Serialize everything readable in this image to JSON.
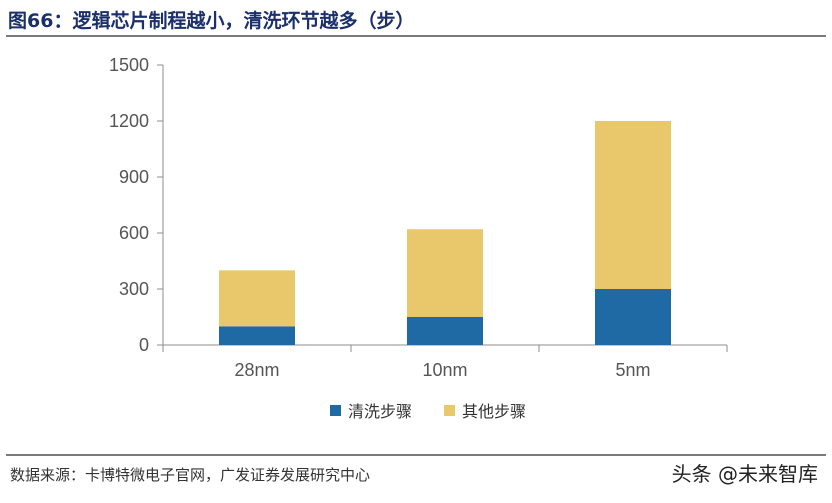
{
  "title": "图66：逻辑芯片制程越小，清洗环节越多（步）",
  "source": "数据来源：卡博特微电子官网，广发证券发展研究中心",
  "watermark": "头条 @未来智库",
  "chart_data": {
    "type": "bar",
    "stacked": true,
    "categories": [
      "28nm",
      "10nm",
      "5nm"
    ],
    "series": [
      {
        "name": "清洗步骤",
        "values": [
          100,
          150,
          300
        ],
        "color": "#1f6aa5"
      },
      {
        "name": "其他步骤",
        "values": [
          300,
          470,
          900
        ],
        "color": "#e8c86a"
      }
    ],
    "ylim": [
      0,
      1500
    ],
    "yticks": [
      0,
      300,
      600,
      900,
      1200,
      1500
    ],
    "grid": false,
    "legend_position": "bottom",
    "title": "",
    "xlabel": "",
    "ylabel": ""
  }
}
